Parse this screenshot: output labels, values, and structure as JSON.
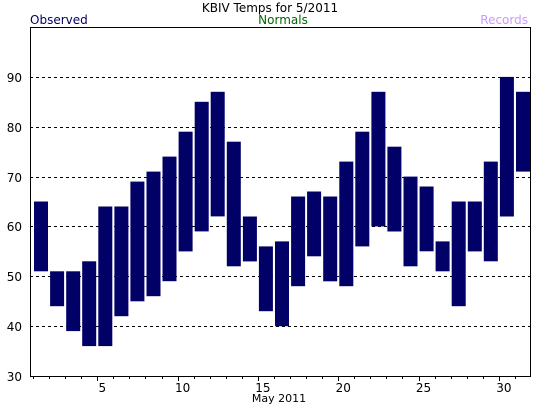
{
  "header": {
    "title": "KBIV Temps for 5/2011",
    "legend_observed": "Observed",
    "legend_normals": "Normals",
    "legend_records": "Records"
  },
  "colors": {
    "observed": "#000066",
    "normals": "#006600",
    "records": "#cc99ff",
    "bar": "#000066",
    "grid": "#000000",
    "axis": "#000000"
  },
  "chart_data": {
    "type": "bar",
    "subtype": "floating-range",
    "title": "KBIV Temps for 5/2011",
    "xlabel": "May 2011",
    "ylabel": "",
    "xlim": [
      1,
      31
    ],
    "ylim": [
      30,
      100
    ],
    "x_ticks": [
      5,
      10,
      15,
      20,
      25,
      30
    ],
    "y_ticks": [
      30,
      40,
      50,
      60,
      70,
      80,
      90
    ],
    "grid": "horizontal-dashed",
    "legend_position": "top",
    "series": [
      {
        "name": "Observed",
        "days": [
          1,
          2,
          3,
          4,
          5,
          6,
          7,
          8,
          9,
          10,
          11,
          12,
          13,
          14,
          15,
          16,
          17,
          18,
          19,
          20,
          21,
          22,
          23,
          24,
          25,
          26,
          27,
          28,
          29,
          30,
          31
        ],
        "low": [
          51,
          44,
          39,
          36,
          36,
          42,
          45,
          46,
          49,
          55,
          59,
          62,
          52,
          53,
          43,
          40,
          48,
          54,
          49,
          48,
          56,
          60,
          59,
          52,
          55,
          51,
          44,
          55,
          53,
          62,
          71
        ],
        "high": [
          65,
          51,
          51,
          53,
          64,
          64,
          69,
          71,
          74,
          79,
          85,
          87,
          77,
          62,
          56,
          57,
          66,
          67,
          66,
          73,
          79,
          87,
          76,
          70,
          68,
          57,
          65,
          65,
          73,
          90,
          87
        ]
      }
    ]
  }
}
